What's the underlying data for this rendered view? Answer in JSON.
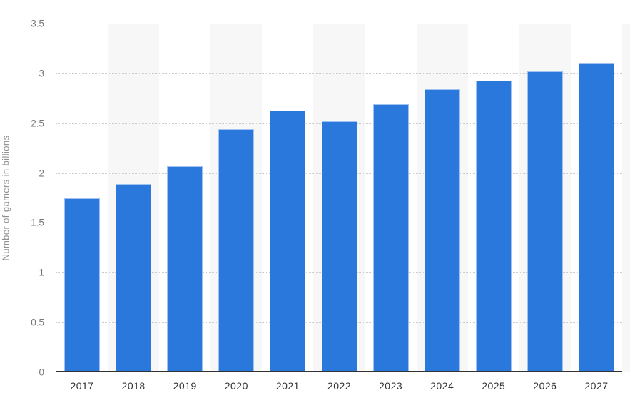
{
  "chart_data": {
    "type": "bar",
    "title": "",
    "xlabel": "",
    "ylabel": "Number of gamers in billions",
    "categories": [
      "2017",
      "2018",
      "2019",
      "2020",
      "2021",
      "2022",
      "2023",
      "2024",
      "2025",
      "2026",
      "2027"
    ],
    "values": [
      1.75,
      1.89,
      2.07,
      2.44,
      2.63,
      2.52,
      2.69,
      2.84,
      2.93,
      3.02,
      3.1
    ],
    "ylim": [
      0,
      3.5
    ],
    "ytick_step": 0.5,
    "ytick_labels": [
      "0",
      "0.5",
      "1",
      "1.5",
      "2",
      "2.5",
      "3",
      "3.5"
    ],
    "grid": "horizontal-dotted",
    "legend": "none",
    "plot_bands": "alternating light bands behind every second category starting with 2018"
  },
  "colors": {
    "bar": "#2b78dc",
    "bar_border": "rgba(255,255,255,0.55)",
    "band": "#f7f7f7",
    "gridline": "#cccccc",
    "axis_line": "#333333",
    "y_tick_label": "#767676",
    "x_tick_label": "#333333",
    "y_title": "#909090",
    "background": "#ffffff"
  }
}
